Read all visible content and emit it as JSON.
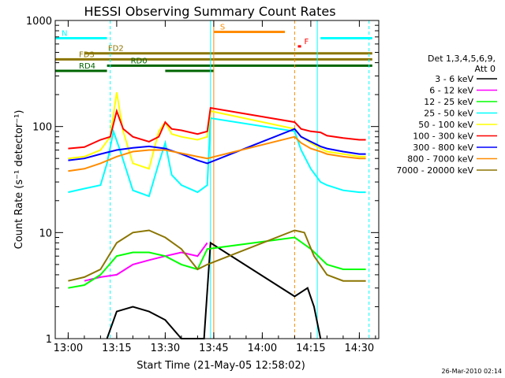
{
  "chart_data": {
    "type": "line",
    "title": "HESSI Observing Summary Count Rates",
    "xlabel": "Start Time (21-May-05 12:58:02)",
    "ylabel": "Count Rate (s⁻¹ detector⁻¹)",
    "y_scale": "log",
    "ylim": [
      1,
      1000
    ],
    "xlim": [
      "12:56",
      "14:36"
    ],
    "x_ticks": [
      "13:00",
      "13:15",
      "13:30",
      "13:45",
      "14:00",
      "14:15",
      "14:30"
    ],
    "y_ticks": [
      "1",
      "10",
      "100",
      "1000"
    ],
    "legend_title": "Det 1,3,4,5,6,9,\nAtt 0",
    "legend_position": "right",
    "timestamp": "26-Mar-2010 02:14",
    "series": [
      {
        "name": "3 - 6 keV",
        "color": "#000000",
        "x": [
          "13:12",
          "13:15",
          "13:20",
          "13:25",
          "13:30",
          "13:35",
          "13:42",
          "13:44",
          "14:10",
          "14:14",
          "14:16",
          "14:18"
        ],
        "values": [
          1.0,
          1.8,
          2.0,
          1.8,
          1.5,
          1.0,
          1.0,
          8.0,
          2.5,
          3.0,
          2.0,
          1.0
        ]
      },
      {
        "name": "6 - 12 keV",
        "color": "#ff00ff",
        "x": [
          "13:05",
          "13:10",
          "13:15",
          "13:20",
          "13:25",
          "13:30",
          "13:35",
          "13:40",
          "13:43"
        ],
        "values": [
          3.5,
          3.8,
          4.0,
          5.0,
          5.5,
          6.0,
          6.5,
          6.0,
          8.0
        ]
      },
      {
        "name": "12 - 25 keV",
        "color": "#00ff00",
        "x": [
          "13:00",
          "13:05",
          "13:10",
          "13:15",
          "13:20",
          "13:25",
          "13:30",
          "13:35",
          "13:40",
          "13:43",
          "14:10",
          "14:15",
          "14:20",
          "14:25",
          "14:30",
          "14:32"
        ],
        "values": [
          3.0,
          3.2,
          4.0,
          6.0,
          6.5,
          6.5,
          6.0,
          5.0,
          4.5,
          7.0,
          9.0,
          7.0,
          5.0,
          4.5,
          4.5,
          4.5
        ]
      },
      {
        "name": "25 - 50 keV",
        "color": "#00ffff",
        "x": [
          "13:00",
          "13:05",
          "13:10",
          "13:12",
          "13:14",
          "13:16",
          "13:20",
          "13:25",
          "13:28",
          "13:30",
          "13:32",
          "13:35",
          "13:40",
          "13:43",
          "13:44",
          "14:10",
          "14:12",
          "14:15",
          "14:18",
          "14:20",
          "14:25",
          "14:30",
          "14:32"
        ],
        "values": [
          24,
          26,
          28,
          45,
          90,
          60,
          25,
          22,
          45,
          70,
          35,
          28,
          24,
          28,
          120,
          90,
          60,
          40,
          30,
          28,
          25,
          24,
          24
        ]
      },
      {
        "name": "50 - 100 keV",
        "color": "#ffff00",
        "x": [
          "13:00",
          "13:05",
          "13:10",
          "13:13",
          "13:15",
          "13:17",
          "13:20",
          "13:25",
          "13:28",
          "13:30",
          "13:32",
          "13:35",
          "13:40",
          "13:43",
          "13:44",
          "14:10",
          "14:12",
          "14:15",
          "14:18",
          "14:20",
          "14:25",
          "14:30",
          "14:32"
        ],
        "values": [
          50,
          52,
          60,
          80,
          210,
          90,
          45,
          40,
          90,
          110,
          85,
          80,
          75,
          80,
          140,
          95,
          80,
          70,
          62,
          58,
          55,
          52,
          52
        ]
      },
      {
        "name": "100 - 300 keV",
        "color": "#ff0000",
        "x": [
          "13:00",
          "13:05",
          "13:10",
          "13:13",
          "13:15",
          "13:17",
          "13:20",
          "13:25",
          "13:28",
          "13:30",
          "13:32",
          "13:35",
          "13:40",
          "13:43",
          "13:44",
          "14:10",
          "14:12",
          "14:15",
          "14:18",
          "14:20",
          "14:25",
          "14:30",
          "14:32"
        ],
        "values": [
          62,
          64,
          75,
          80,
          140,
          95,
          80,
          72,
          80,
          110,
          95,
          92,
          85,
          90,
          150,
          110,
          95,
          90,
          88,
          82,
          78,
          75,
          75
        ]
      },
      {
        "name": "300 - 800 keV",
        "color": "#0000ff",
        "x": [
          "13:00",
          "13:05",
          "13:10",
          "13:15",
          "13:20",
          "13:25",
          "13:30",
          "13:35",
          "13:40",
          "13:43",
          "14:10",
          "14:12",
          "14:15",
          "14:18",
          "14:20",
          "14:25",
          "14:30",
          "14:32"
        ],
        "values": [
          48,
          50,
          55,
          60,
          63,
          65,
          62,
          55,
          48,
          45,
          95,
          80,
          72,
          65,
          62,
          58,
          55,
          55
        ]
      },
      {
        "name": "800 - 7000 keV",
        "color": "#ff8c00",
        "x": [
          "13:00",
          "13:05",
          "13:10",
          "13:15",
          "13:20",
          "13:25",
          "13:30",
          "13:35",
          "13:40",
          "13:43",
          "14:10",
          "14:12",
          "14:15",
          "14:18",
          "14:20",
          "14:25",
          "14:30",
          "14:32"
        ],
        "values": [
          38,
          40,
          45,
          52,
          58,
          60,
          60,
          56,
          52,
          50,
          80,
          70,
          62,
          58,
          55,
          52,
          50,
          50
        ]
      },
      {
        "name": "7000 - 20000 keV",
        "color": "#8b7500",
        "x": [
          "13:00",
          "13:05",
          "13:10",
          "13:15",
          "13:20",
          "13:25",
          "13:30",
          "13:35",
          "13:40",
          "13:43",
          "14:10",
          "14:13",
          "14:16",
          "14:20",
          "14:25",
          "14:30",
          "14:32"
        ],
        "values": [
          3.5,
          3.8,
          4.5,
          8.0,
          10.0,
          10.5,
          9.0,
          7.0,
          4.5,
          5.0,
          10.5,
          10.0,
          6.0,
          4.0,
          3.5,
          3.5,
          3.5
        ]
      }
    ],
    "flags": [
      {
        "label": "N",
        "color": "#00ffff",
        "level": 680,
        "segments": [
          [
            "12:56",
            "13:12"
          ],
          [
            "14:18",
            "14:34"
          ]
        ]
      },
      {
        "label": "S",
        "color": "#ff8c00",
        "level": 780,
        "segments": [
          [
            "13:45",
            "14:07"
          ]
        ]
      },
      {
        "label": "F",
        "color": "#ff0000",
        "level": 570,
        "segments": [
          [
            "14:11",
            "14:12"
          ]
        ]
      },
      {
        "label": "FD2",
        "color": "#8b7500",
        "level": 490,
        "segments": [
          [
            "13:05",
            "14:34"
          ]
        ]
      },
      {
        "label": "FD3",
        "color": "#8b7500",
        "level": 430,
        "segments": [
          [
            "12:56",
            "14:34"
          ]
        ]
      },
      {
        "label": "RD0",
        "color": "#006400",
        "level": 375,
        "segments": [
          [
            "13:12",
            "14:34"
          ]
        ]
      },
      {
        "label": "RD4",
        "color": "#006400",
        "level": 335,
        "segments": [
          [
            "12:56",
            "13:12"
          ],
          [
            "13:30",
            "13:45"
          ]
        ]
      }
    ],
    "vlines": [
      {
        "x": "13:13",
        "color": "#00ffff",
        "style": "dashed"
      },
      {
        "x": "13:44",
        "color": "#00ffff",
        "style": "solid"
      },
      {
        "x": "13:45",
        "color": "#ff8c00",
        "style": "solid"
      },
      {
        "x": "14:10",
        "color": "#ff8c00",
        "style": "dashed"
      },
      {
        "x": "14:17",
        "color": "#00ffff",
        "style": "solid"
      },
      {
        "x": "14:33",
        "color": "#00ffff",
        "style": "dashed"
      }
    ]
  }
}
